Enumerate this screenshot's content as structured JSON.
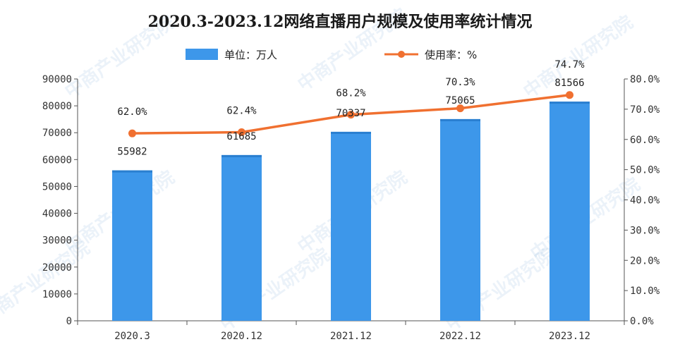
{
  "chart_data": {
    "type": "bar",
    "title": "2020.3-2023.12网络直播用户规模及使用率统计情况",
    "categories": [
      "2020.3",
      "2020.12",
      "2021.12",
      "2022.12",
      "2023.12"
    ],
    "series": [
      {
        "name": "单位：万人",
        "kind": "bar",
        "axis": "left",
        "values": [
          55982,
          61685,
          70337,
          75065,
          81566
        ],
        "color": "#3d97ea"
      },
      {
        "name": "使用率：%",
        "kind": "line",
        "axis": "right",
        "values": [
          62.0,
          62.4,
          68.2,
          70.3,
          74.7
        ],
        "color": "#f07030"
      }
    ],
    "bar_labels": [
      "55982",
      "61685",
      "70337",
      "75065",
      "81566"
    ],
    "line_labels": [
      "62.0%",
      "62.4%",
      "68.2%",
      "70.3%",
      "74.7%"
    ],
    "y_left": {
      "min": 0,
      "max": 90000,
      "ticks": [
        "0",
        "10000",
        "20000",
        "30000",
        "40000",
        "50000",
        "60000",
        "70000",
        "80000",
        "90000"
      ]
    },
    "y_right": {
      "min": 0,
      "max": 80,
      "ticks": [
        "0.0%",
        "10.0%",
        "20.0%",
        "30.0%",
        "40.0%",
        "50.0%",
        "60.0%",
        "70.0%",
        "80.0%"
      ]
    },
    "grid": false,
    "legend_position": "top-center"
  },
  "watermark": "中商产业研究院"
}
